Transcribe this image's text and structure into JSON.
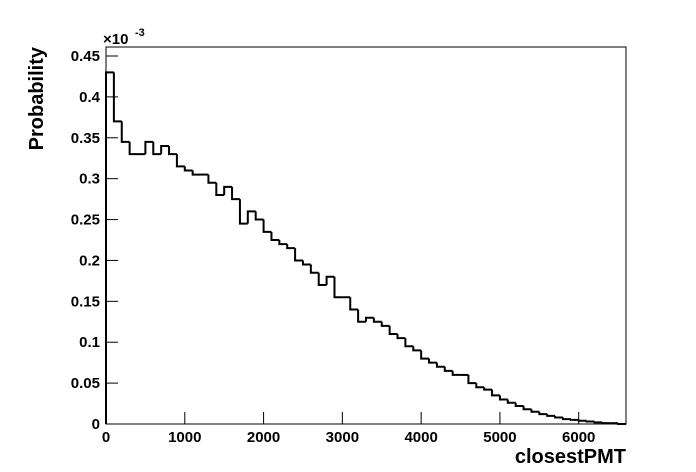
{
  "chart_data": {
    "type": "histogram",
    "x_label": "closestPMT",
    "y_label": "Probability",
    "y_multiplier": "×10",
    "y_multiplier_exponent": "-3",
    "bins": [
      0,
      100,
      200,
      300,
      400,
      500,
      600,
      700,
      800,
      900,
      1000,
      1100,
      1200,
      1300,
      1400,
      1500,
      1600,
      1700,
      1800,
      1900,
      2000,
      2100,
      2200,
      2300,
      2400,
      2500,
      2600,
      2700,
      2800,
      2900,
      3000,
      3100,
      3200,
      3300,
      3400,
      3500,
      3600,
      3700,
      3800,
      3900,
      4000,
      4100,
      4200,
      4300,
      4400,
      4500,
      4600,
      4700,
      4800,
      4900,
      5000,
      5100,
      5200,
      5300,
      5400,
      5500,
      5600,
      5700,
      5800,
      5900,
      6000,
      6100,
      6200,
      6300,
      6400,
      6500,
      6600
    ],
    "values": [
      0.43,
      0.37,
      0.345,
      0.33,
      0.33,
      0.345,
      0.33,
      0.34,
      0.33,
      0.315,
      0.31,
      0.305,
      0.305,
      0.295,
      0.28,
      0.29,
      0.275,
      0.245,
      0.26,
      0.25,
      0.235,
      0.225,
      0.22,
      0.215,
      0.2,
      0.195,
      0.185,
      0.17,
      0.18,
      0.155,
      0.155,
      0.14,
      0.125,
      0.13,
      0.125,
      0.12,
      0.11,
      0.105,
      0.095,
      0.09,
      0.08,
      0.075,
      0.07,
      0.065,
      0.06,
      0.06,
      0.05,
      0.045,
      0.042,
      0.035,
      0.03,
      0.026,
      0.022,
      0.018,
      0.015,
      0.012,
      0.01,
      0.008,
      0.006,
      0.005,
      0.004,
      0.003,
      0.002,
      0.001,
      0.001,
      0
    ],
    "color": "#000000",
    "xlim": [
      0,
      6600
    ],
    "xticks": [
      0,
      1000,
      2000,
      3000,
      4000,
      5000,
      6000
    ],
    "ylim": [
      0,
      0.461
    ],
    "yticks": [
      0,
      0.05,
      0.1,
      0.15,
      0.2,
      0.25,
      0.3,
      0.35,
      0.4,
      0.45
    ]
  }
}
